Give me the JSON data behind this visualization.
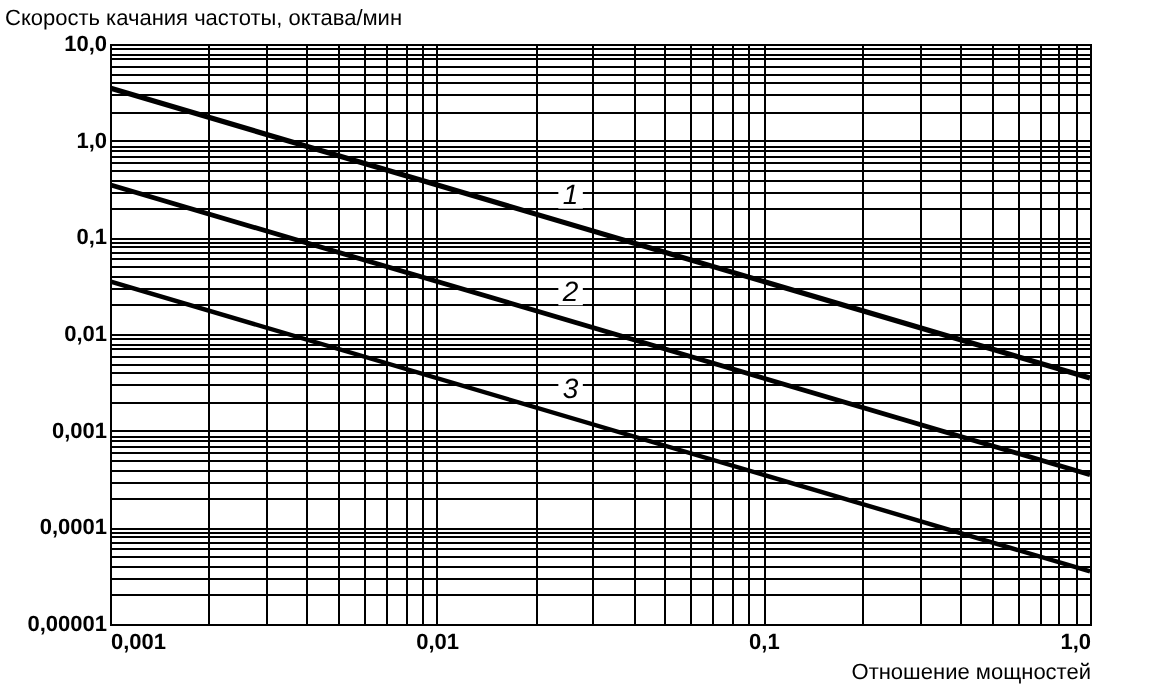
{
  "chart_data": {
    "type": "line",
    "ylabel": "Скорость качания частоты, октава/мин",
    "xlabel": "Отношение мощностей",
    "x": [
      0.001,
      1.0
    ],
    "series": [
      {
        "name": "1",
        "color": "#000000",
        "values": [
          3.5,
          0.0035
        ]
      },
      {
        "name": "2",
        "color": "#000000",
        "values": [
          0.35,
          0.00035
        ]
      },
      {
        "name": "3",
        "color": "#000000",
        "values": [
          0.035,
          3.5e-05
        ]
      }
    ],
    "log": "xy",
    "grid": true,
    "marker": "none",
    "line_style": "solid",
    "xlim": [
      0.001,
      1.0
    ],
    "ylim": [
      1e-05,
      10
    ],
    "xticks": [
      {
        "value": 0.001,
        "label": "0,001"
      },
      {
        "value": 0.01,
        "label": "0,01"
      },
      {
        "value": 0.1,
        "label": "0,1"
      },
      {
        "value": 1.0,
        "label": "1,0"
      }
    ],
    "yticks": [
      {
        "value": 1e-05,
        "label": "0,00001"
      },
      {
        "value": 0.0001,
        "label": "0,0001"
      },
      {
        "value": 0.001,
        "label": "0,001"
      },
      {
        "value": 0.01,
        "label": "0,01"
      },
      {
        "value": 0.1,
        "label": "0,1"
      },
      {
        "value": 1,
        "label": "1,0"
      },
      {
        "value": 10,
        "label": "10,0"
      }
    ]
  }
}
